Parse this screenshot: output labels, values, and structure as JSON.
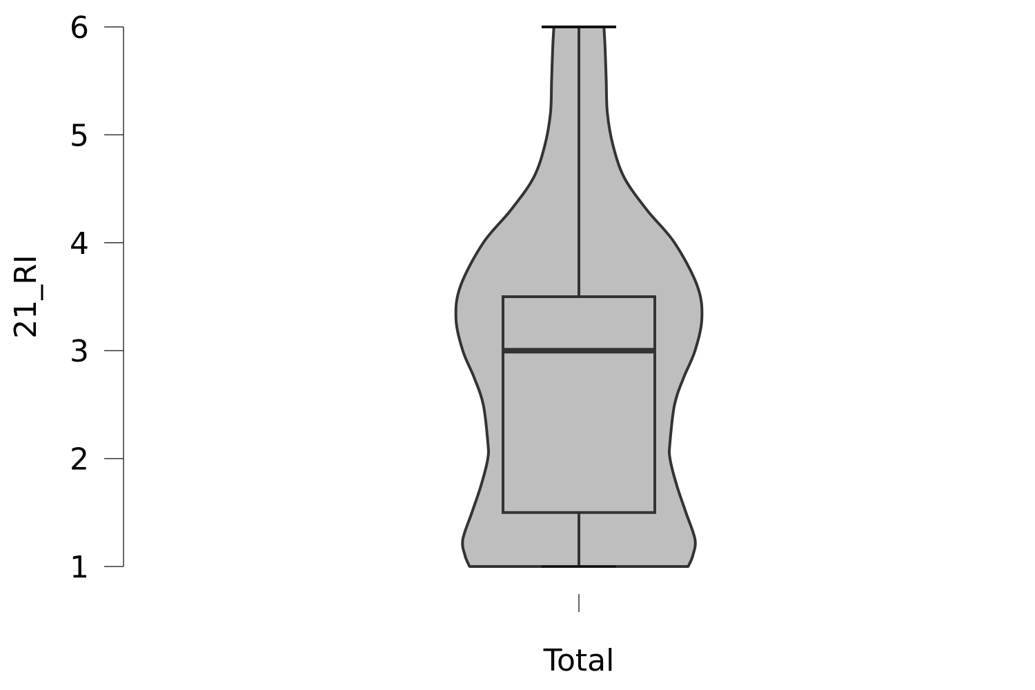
{
  "chart_data": {
    "type": "violin",
    "title": "",
    "xlabel": "",
    "ylabel": "21_RI",
    "categories": [
      "Total"
    ],
    "ylim": [
      1,
      6
    ],
    "yticks": [
      1,
      2,
      3,
      4,
      5,
      6
    ],
    "grid": false,
    "legend": "none",
    "series": [
      {
        "category": "Total",
        "box": {
          "whisker_low": 1,
          "q1": 1.5,
          "median": 3,
          "q3": 3.5,
          "whisker_high": 6
        },
        "density": {
          "y": [
            1.0,
            1.1,
            1.25,
            1.5,
            1.75,
            2.0,
            2.15,
            2.5,
            2.75,
            3.0,
            3.3,
            3.6,
            4.0,
            4.3,
            4.6,
            4.9,
            5.2,
            5.5,
            5.8,
            6.0
          ],
          "half_width": [
            0.48,
            0.5,
            0.51,
            0.47,
            0.43,
            0.4,
            0.4,
            0.42,
            0.46,
            0.51,
            0.54,
            0.52,
            0.42,
            0.3,
            0.2,
            0.15,
            0.125,
            0.12,
            0.115,
            0.11
          ]
        }
      }
    ],
    "colors": {
      "fill": "#bebebe",
      "stroke": "#333333",
      "axis": "#333333"
    }
  }
}
